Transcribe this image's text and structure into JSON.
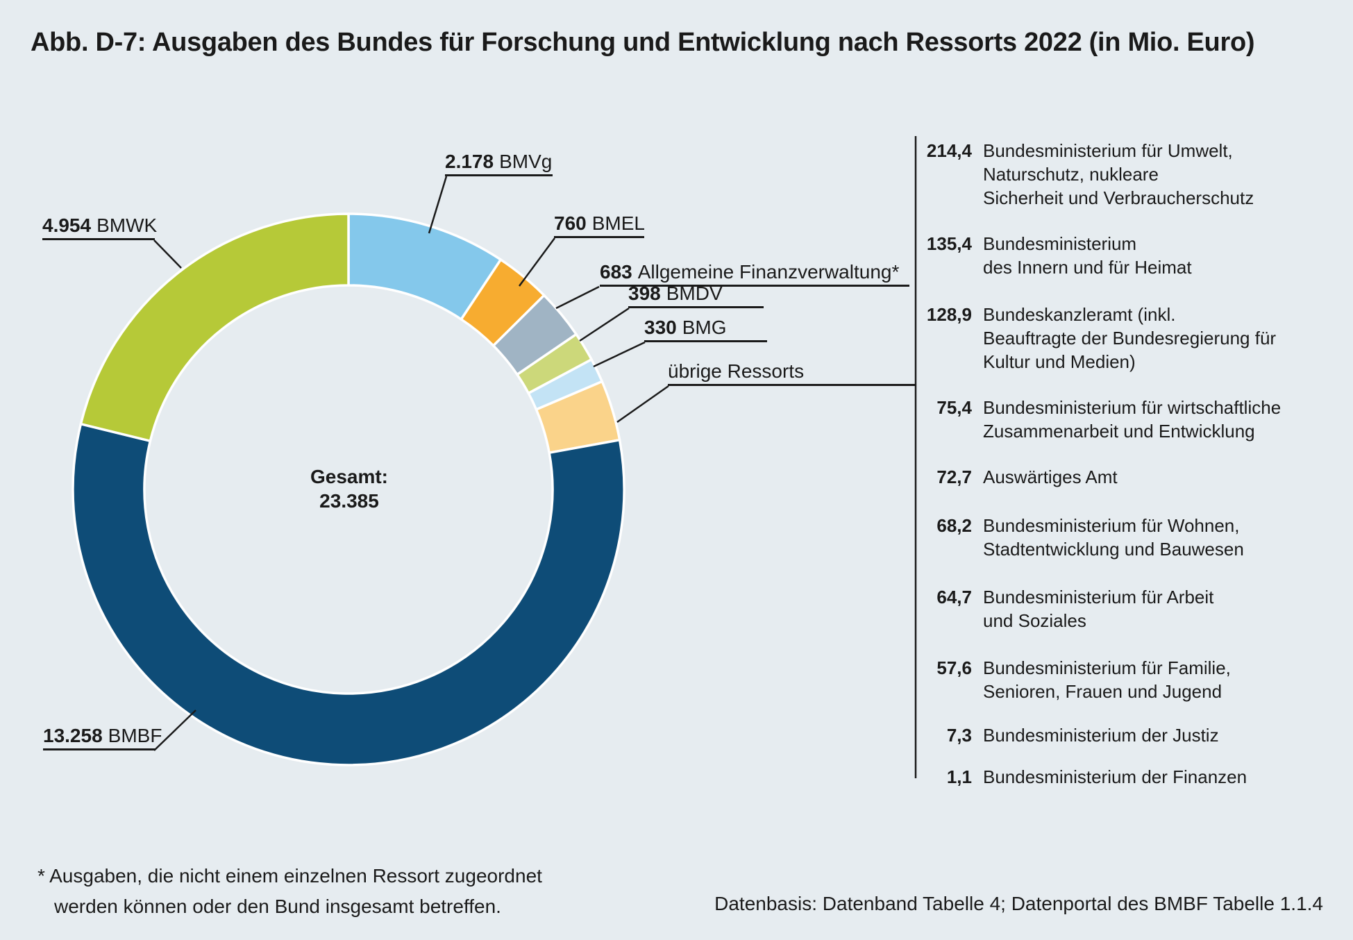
{
  "title": "Abb. D-7: Ausgaben des Bundes für Forschung und Entwicklung nach Ressorts 2022 (in Mio. Euro)",
  "footnote": {
    "line1": "* Ausgaben, die nicht einem einzelnen Ressort zugeordnet",
    "line2": "werden können oder den Bund insgesamt betreffen."
  },
  "source": "Datenbasis: Datenband Tabelle 4; Datenportal des BMBF Tabelle 1.1.4",
  "colors": {
    "background": "#e6ecf0",
    "text": "#1a1a1a",
    "line": "#1a1a1a",
    "separator": "#ffffff"
  },
  "chart_data": {
    "type": "pie",
    "subtype": "donut",
    "title": "Ausgaben des Bundes für Forschung und Entwicklung nach Ressorts 2022",
    "unit": "Mio. Euro",
    "year": "2022",
    "total": 23385,
    "center": {
      "label": "Gesamt:",
      "value": "23.385"
    },
    "legend_position": "callouts",
    "start_angle_deg": 0,
    "direction": "clockwise",
    "slices": [
      {
        "key": "bmvg",
        "name": "BMVg",
        "value": 2178,
        "value_label": "2.178",
        "color": "#84c8eb"
      },
      {
        "key": "bmel",
        "name": "BMEL",
        "value": 760,
        "value_label": "760",
        "color": "#f7ac30"
      },
      {
        "key": "finanzverwaltung",
        "name": "Allgemeine Finanzverwaltung*",
        "value": 683,
        "value_label": "683",
        "color": "#a0b4c4"
      },
      {
        "key": "bmdv",
        "name": "BMDV",
        "value": 398,
        "value_label": "398",
        "color": "#ccd87a"
      },
      {
        "key": "bmg",
        "name": "BMG",
        "value": 330,
        "value_label": "330",
        "color": "#c3e3f5"
      },
      {
        "key": "uebrige",
        "name": "übrige Ressorts",
        "value": 826,
        "value_label": "",
        "color": "#fad38a"
      },
      {
        "key": "bmbf",
        "name": "BMBF",
        "value": 13258,
        "value_label": "13.258",
        "color": "#0e4c77"
      },
      {
        "key": "bmwk",
        "name": "BMWK",
        "value": 4954,
        "value_label": "4.954",
        "color": "#b6c938"
      }
    ],
    "uebrige_breakdown": [
      {
        "value": "214,4",
        "lines": [
          "Bundesministerium für Umwelt,",
          "Naturschutz, nukleare",
          "Sicherheit und Verbraucherschutz"
        ]
      },
      {
        "value": "135,4",
        "lines": [
          "Bundesministerium",
          "des Innern und für Heimat"
        ]
      },
      {
        "value": "128,9",
        "lines": [
          "Bundeskanzleramt (inkl.",
          "Beauftragte der Bundesregierung für",
          "Kultur und Medien)"
        ]
      },
      {
        "value": "75,4",
        "lines": [
          "Bundesministerium für wirtschaftliche",
          "Zusammenarbeit und Entwicklung"
        ]
      },
      {
        "value": "72,7",
        "lines": [
          "Auswärtiges Amt"
        ]
      },
      {
        "value": "68,2",
        "lines": [
          "Bundesministerium für Wohnen,",
          "Stadtentwicklung und Bauwesen"
        ]
      },
      {
        "value": "64,7",
        "lines": [
          "Bundesministerium für Arbeit",
          "und Soziales"
        ]
      },
      {
        "value": "57,6",
        "lines": [
          "Bundesministerium für Familie,",
          "Senioren, Frauen und Jugend"
        ]
      },
      {
        "value": "7,3",
        "lines": [
          "Bundesministerium der Justiz"
        ]
      },
      {
        "value": "1,1",
        "lines": [
          "Bundesministerium der Finanzen"
        ]
      }
    ]
  }
}
